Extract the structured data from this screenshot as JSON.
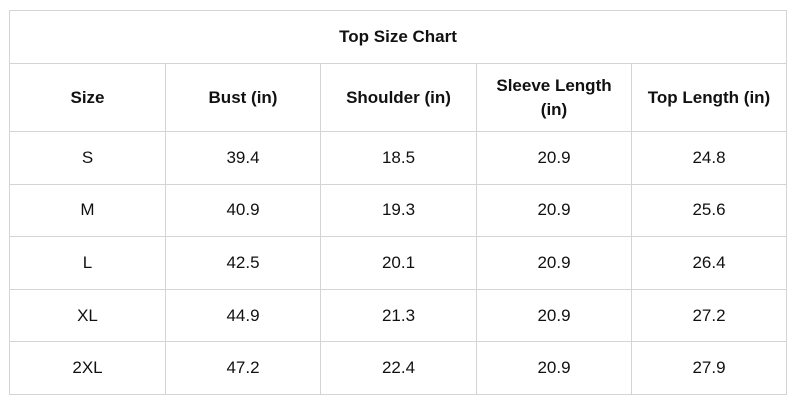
{
  "table": {
    "title": "Top Size Chart",
    "columns": [
      "Size",
      "Bust (in)",
      "Shoulder (in)",
      "Sleeve Length (in)",
      "Top Length (in)"
    ],
    "rows": [
      [
        "S",
        39.4,
        18.5,
        20.9,
        24.8
      ],
      [
        "M",
        40.9,
        19.3,
        20.9,
        25.6
      ],
      [
        "L",
        42.5,
        20.1,
        20.9,
        26.4
      ],
      [
        "XL",
        44.9,
        21.3,
        20.9,
        27.2
      ],
      [
        "2XL",
        47.2,
        22.4,
        20.9,
        27.9
      ]
    ]
  }
}
